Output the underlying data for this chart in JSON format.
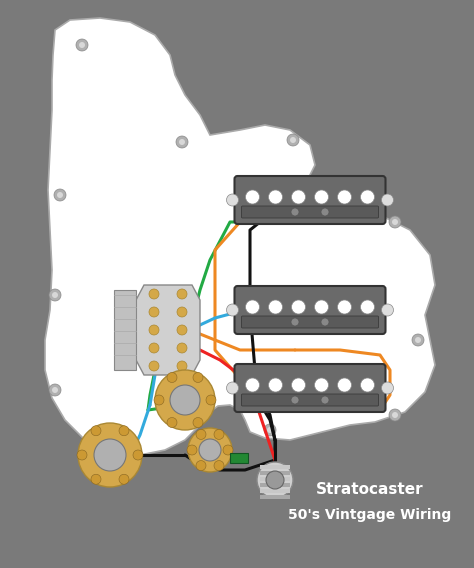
{
  "bg_color": "#7a7a7a",
  "pickguard_color": "#ffffff",
  "pickup_body_color": "#6a6a6a",
  "pickup_hole_color": "#ffffff",
  "wire_black": "#111111",
  "wire_green": "#22aa44",
  "wire_orange": "#ee8822",
  "wire_blue": "#33aadd",
  "wire_red": "#ee2222",
  "pot_color": "#d4a84b",
  "pot_cap_color": "#b0b0b0",
  "title_line1": "Stratocaster",
  "title_line2": "50's Vintgage Wiring",
  "title_color": "#ffffff",
  "title_fontsize": 11
}
